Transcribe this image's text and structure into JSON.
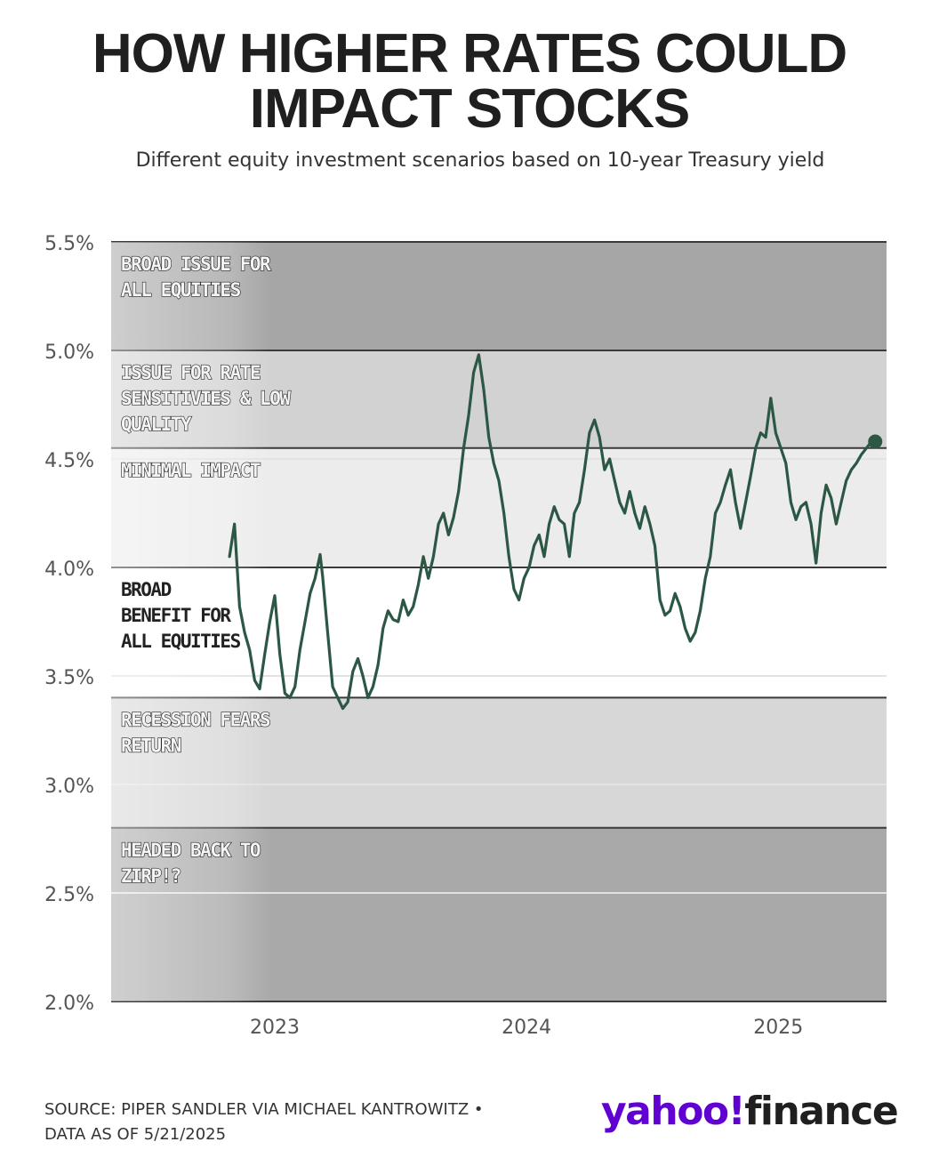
{
  "header": {
    "title_line1": "HOW HIGHER RATES COULD",
    "title_line2": "IMPACT STOCKS",
    "subtitle": "Different equity investment scenarios based on 10-year Treasury yield"
  },
  "footer": {
    "source_line1": "SOURCE: PIPER SANDLER VIA MICHAEL KANTROWITZ •",
    "source_line2": "DATA AS OF 5/21/2025",
    "logo_yahoo": "yahoo!",
    "logo_finance": "finance"
  },
  "colors": {
    "line": "#2b5744",
    "band_dark": "#a6a6a6",
    "band_mid": "#d2d2d2",
    "band_light": "#ececec",
    "band_white": "#ffffff",
    "band_recession": "#d7d7d7",
    "band_zirp": "#a9a9a9",
    "boundary": "#3a3a3a",
    "grid": "#e2e2e2"
  },
  "chart_data": {
    "type": "line",
    "title": "HOW HIGHER RATES COULD IMPACT STOCKS",
    "subtitle": "Different equity investment scenarios based on 10-year Treasury yield",
    "xlabel": "",
    "ylabel": "",
    "xlim": [
      2022.35,
      2025.43
    ],
    "ylim": [
      2.0,
      5.5
    ],
    "y_ticks": [
      2.0,
      2.5,
      3.0,
      3.5,
      4.0,
      4.5,
      5.0,
      5.5
    ],
    "y_tick_labels": [
      "2.0%",
      "2.5%",
      "3.0%",
      "3.5%",
      "4.0%",
      "4.5%",
      "5.0%",
      "5.5%"
    ],
    "x_ticks": [
      2023,
      2024,
      2025
    ],
    "x_tick_labels": [
      "2023",
      "2024",
      "2025"
    ],
    "regions": [
      {
        "label": "BROAD ISSUE FOR ALL EQUITIES",
        "lines": [
          "BROAD ISSUE FOR",
          "ALL EQUITIES"
        ],
        "from": 5.0,
        "to": 5.5,
        "style": "outline"
      },
      {
        "label": "ISSUE FOR RATE SENSITIVIES & LOW QUALITY",
        "lines": [
          "ISSUE FOR RATE",
          "SENSITIVIES & LOW",
          "QUALITY"
        ],
        "from": 4.55,
        "to": 5.0,
        "style": "outline"
      },
      {
        "label": "MINIMAL IMPACT",
        "lines": [
          "MINIMAL IMPACT"
        ],
        "from": 4.0,
        "to": 4.55,
        "style": "outline"
      },
      {
        "label": "BROAD BENEFIT FOR ALL EQUITIES",
        "lines": [
          "BROAD",
          "BENEFIT FOR",
          "ALL EQUITIES"
        ],
        "from": 3.4,
        "to": 4.0,
        "style": "plain"
      },
      {
        "label": "RECESSION FEARS RETURN",
        "lines": [
          "RECESSION FEARS",
          "RETURN"
        ],
        "from": 2.8,
        "to": 3.4,
        "style": "outline"
      },
      {
        "label": "HEADED BACK TO ZIRP!?",
        "lines": [
          "HEADED BACK TO",
          "ZIRP!?"
        ],
        "from": 2.0,
        "to": 2.8,
        "style": "outline"
      }
    ],
    "series": [
      {
        "name": "10-year Treasury yield",
        "x": [
          2022.82,
          2022.84,
          2022.86,
          2022.88,
          2022.9,
          2022.92,
          2022.94,
          2022.96,
          2022.98,
          2023.0,
          2023.02,
          2023.04,
          2023.06,
          2023.08,
          2023.1,
          2023.12,
          2023.14,
          2023.16,
          2023.18,
          2023.19,
          2023.21,
          2023.23,
          2023.25,
          2023.27,
          2023.29,
          2023.31,
          2023.33,
          2023.35,
          2023.37,
          2023.39,
          2023.41,
          2023.43,
          2023.45,
          2023.47,
          2023.49,
          2023.51,
          2023.53,
          2023.55,
          2023.57,
          2023.59,
          2023.61,
          2023.63,
          2023.65,
          2023.67,
          2023.69,
          2023.71,
          2023.73,
          2023.75,
          2023.77,
          2023.79,
          2023.81,
          2023.83,
          2023.85,
          2023.87,
          2023.89,
          2023.91,
          2023.93,
          2023.95,
          2023.97,
          2023.99,
          2024.01,
          2024.03,
          2024.05,
          2024.07,
          2024.09,
          2024.11,
          2024.13,
          2024.15,
          2024.17,
          2024.19,
          2024.21,
          2024.23,
          2024.25,
          2024.27,
          2024.29,
          2024.31,
          2024.33,
          2024.35,
          2024.37,
          2024.39,
          2024.41,
          2024.43,
          2024.45,
          2024.47,
          2024.49,
          2024.51,
          2024.53,
          2024.55,
          2024.57,
          2024.59,
          2024.61,
          2024.63,
          2024.65,
          2024.67,
          2024.69,
          2024.71,
          2024.73,
          2024.75,
          2024.77,
          2024.79,
          2024.81,
          2024.83,
          2024.85,
          2024.87,
          2024.89,
          2024.91,
          2024.93,
          2024.95,
          2024.97,
          2024.99,
          2025.01,
          2025.03,
          2025.05,
          2025.07,
          2025.09,
          2025.11,
          2025.13,
          2025.15,
          2025.17,
          2025.19,
          2025.21,
          2025.23,
          2025.25,
          2025.27,
          2025.29,
          2025.31,
          2025.33,
          2025.35,
          2025.37,
          2025.385
        ],
        "values": [
          4.05,
          4.2,
          3.82,
          3.7,
          3.62,
          3.48,
          3.44,
          3.6,
          3.75,
          3.87,
          3.6,
          3.42,
          3.4,
          3.45,
          3.62,
          3.75,
          3.88,
          3.95,
          4.06,
          3.96,
          3.7,
          3.45,
          3.4,
          3.35,
          3.38,
          3.52,
          3.58,
          3.5,
          3.4,
          3.45,
          3.55,
          3.72,
          3.8,
          3.76,
          3.75,
          3.85,
          3.78,
          3.82,
          3.92,
          4.05,
          3.95,
          4.05,
          4.2,
          4.25,
          4.15,
          4.23,
          4.35,
          4.55,
          4.7,
          4.9,
          4.98,
          4.82,
          4.6,
          4.48,
          4.4,
          4.25,
          4.05,
          3.9,
          3.85,
          3.95,
          4.0,
          4.1,
          4.15,
          4.05,
          4.2,
          4.28,
          4.22,
          4.2,
          4.05,
          4.25,
          4.3,
          4.45,
          4.62,
          4.68,
          4.6,
          4.45,
          4.5,
          4.4,
          4.3,
          4.25,
          4.35,
          4.25,
          4.18,
          4.28,
          4.2,
          4.1,
          3.85,
          3.78,
          3.8,
          3.88,
          3.82,
          3.72,
          3.66,
          3.7,
          3.8,
          3.95,
          4.05,
          4.25,
          4.3,
          4.38,
          4.45,
          4.3,
          4.18,
          4.3,
          4.42,
          4.55,
          4.62,
          4.6,
          4.78,
          4.62,
          4.55,
          4.48,
          4.3,
          4.22,
          4.28,
          4.3,
          4.2,
          4.02,
          4.25,
          4.38,
          4.32,
          4.2,
          4.3,
          4.4,
          4.45,
          4.48,
          4.52,
          4.55,
          4.58,
          4.58
        ]
      }
    ],
    "end_marker": {
      "x": 2025.385,
      "value": 4.58
    }
  }
}
